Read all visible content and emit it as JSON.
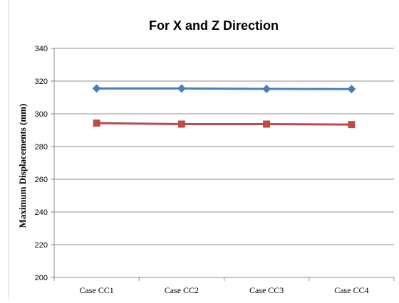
{
  "chart_data": {
    "type": "line",
    "title": "For X and Z Direction",
    "xlabel": "",
    "ylabel": "Maximum Displacements (mm)",
    "categories": [
      "Case CC1",
      "Case CC2",
      "Case CC3",
      "Case CC4"
    ],
    "ylim": [
      200,
      340
    ],
    "yticks": [
      200,
      220,
      240,
      260,
      280,
      300,
      320,
      340
    ],
    "grid": true,
    "series": [
      {
        "values": [
          315.5,
          315.5,
          315.2,
          315.1
        ],
        "color": "#4a7ebb",
        "marker": "diamond"
      },
      {
        "values": [
          294.3,
          293.7,
          293.7,
          293.4
        ],
        "color": "#be4b48",
        "marker": "square"
      }
    ]
  }
}
